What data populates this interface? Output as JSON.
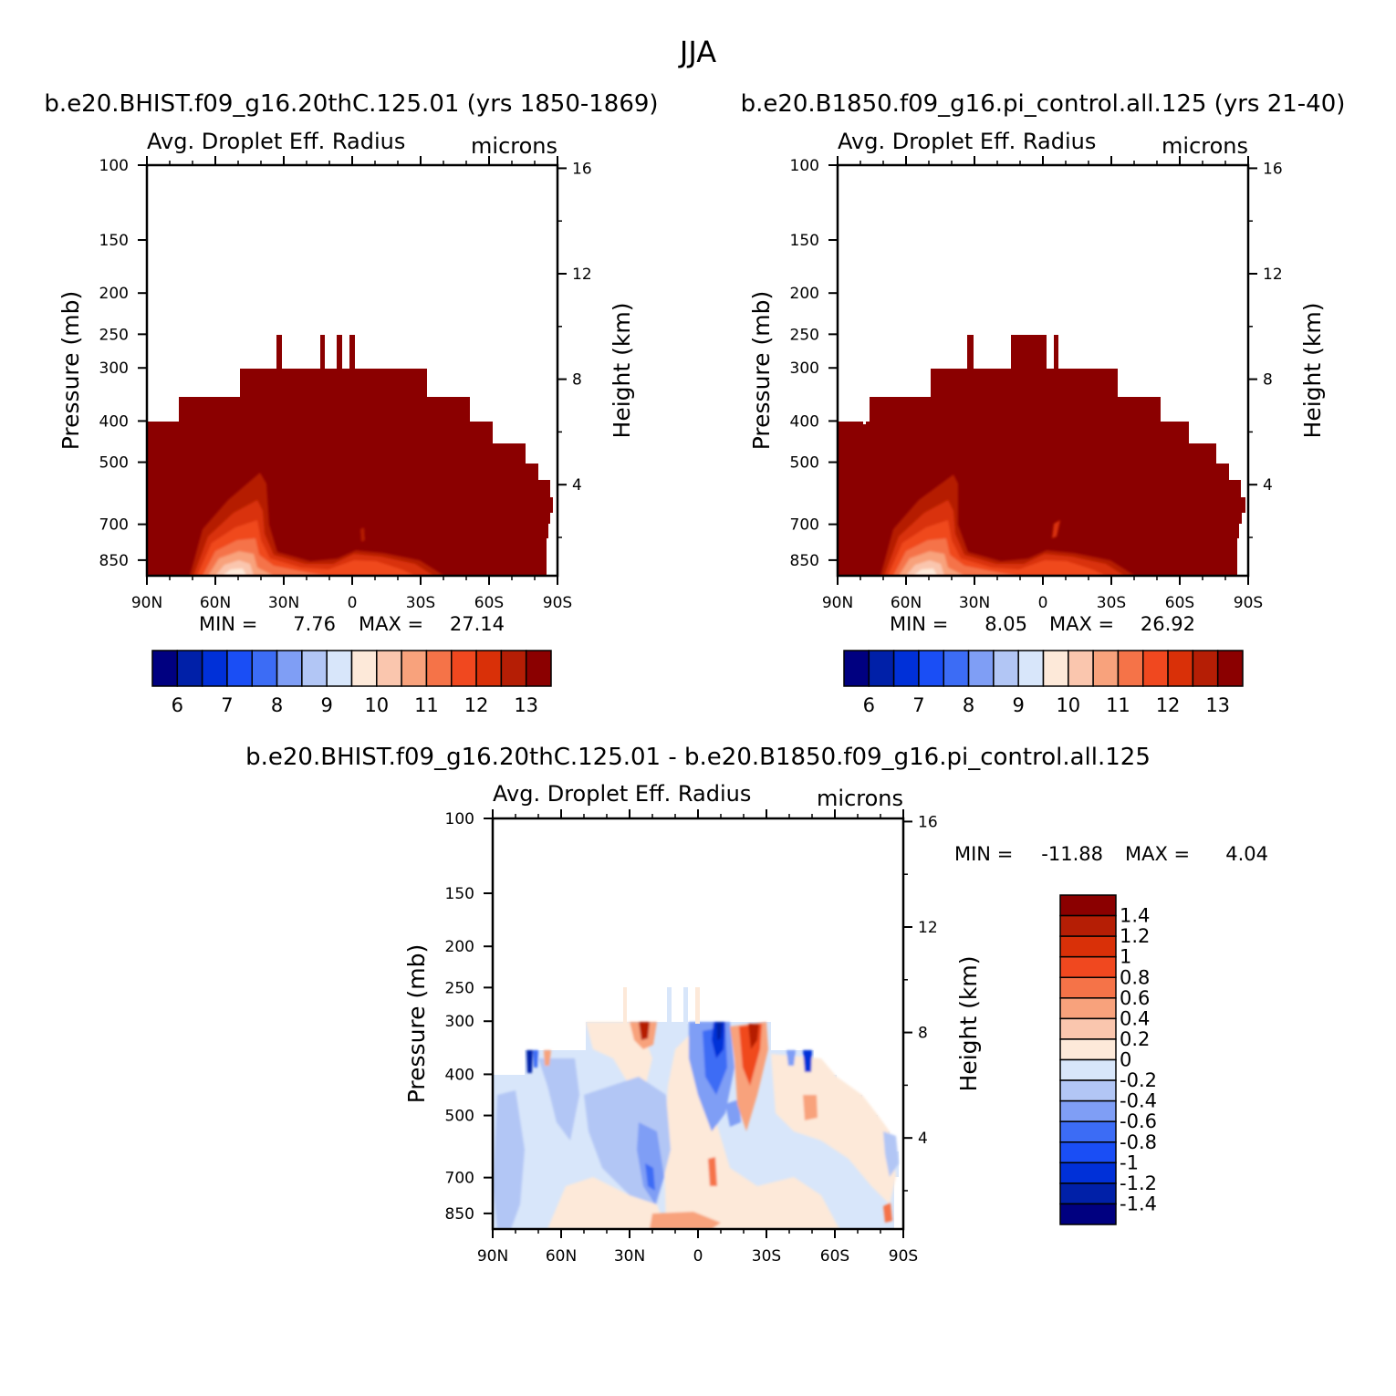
{
  "figure": {
    "title": "JJA",
    "panel1_title": "b.e20.BHIST.f09_g16.20thC.125.01 (yrs 1850-1869)",
    "panel2_title": "b.e20.B1850.f09_g16.pi_control.all.125 (yrs 21-40)",
    "panel3_title": "b.e20.BHIST.f09_g16.20thC.125.01 - b.e20.B1850.f09_g16.pi_control.all.125"
  },
  "chart_data": [
    {
      "type": "heatmap",
      "variable": "Avg. Droplet Eff. Radius",
      "units": "microns",
      "ylabel": "Pressure (mb)",
      "ylabel_right": "Height (km)",
      "x_ticks": [
        "90N",
        "60N",
        "30N",
        "0",
        "30S",
        "60S",
        "90S"
      ],
      "y_ticks": [
        100,
        150,
        200,
        250,
        300,
        400,
        500,
        700,
        850
      ],
      "height_ticks": [
        16,
        12,
        8,
        4
      ],
      "ylim": [
        100,
        925
      ],
      "y_scale": "log",
      "min_label": "MIN =",
      "min": "7.76",
      "max_label": "MAX =",
      "max": "27.14",
      "colorbar_labels": [
        "6",
        "7",
        "8",
        "9",
        "10",
        "11",
        "12",
        "13"
      ],
      "colorbar_levels": [
        5.5,
        6,
        6.5,
        7,
        7.5,
        8,
        8.5,
        9,
        9.5,
        10,
        10.5,
        11,
        11.5,
        12,
        12.5,
        13,
        13.5
      ],
      "colorbar_colors": [
        "#000080",
        "#0020a8",
        "#0030d8",
        "#1a4ef5",
        "#3c6cf5",
        "#7f9ef5",
        "#b2c6f5",
        "#d8e6fa",
        "#fde9d9",
        "#fac6ae",
        "#f8a27c",
        "#f57348",
        "#f0481f",
        "#d93008",
        "#b51e05",
        "#8b0000"
      ],
      "grid": false
    },
    {
      "type": "heatmap",
      "variable": "Avg. Droplet Eff. Radius",
      "units": "microns",
      "ylabel": "Pressure (mb)",
      "ylabel_right": "Height (km)",
      "x_ticks": [
        "90N",
        "60N",
        "30N",
        "0",
        "30S",
        "60S",
        "90S"
      ],
      "y_ticks": [
        100,
        150,
        200,
        250,
        300,
        400,
        500,
        700,
        850
      ],
      "height_ticks": [
        16,
        12,
        8,
        4
      ],
      "ylim": [
        100,
        925
      ],
      "y_scale": "log",
      "min_label": "MIN =",
      "min": "8.05",
      "max_label": "MAX =",
      "max": "26.92",
      "colorbar_labels": [
        "6",
        "7",
        "8",
        "9",
        "10",
        "11",
        "12",
        "13"
      ],
      "colorbar_levels": [
        5.5,
        6,
        6.5,
        7,
        7.5,
        8,
        8.5,
        9,
        9.5,
        10,
        10.5,
        11,
        11.5,
        12,
        12.5,
        13,
        13.5
      ],
      "colorbar_colors": [
        "#000080",
        "#0020a8",
        "#0030d8",
        "#1a4ef5",
        "#3c6cf5",
        "#7f9ef5",
        "#b2c6f5",
        "#d8e6fa",
        "#fde9d9",
        "#fac6ae",
        "#f8a27c",
        "#f57348",
        "#f0481f",
        "#d93008",
        "#b51e05",
        "#8b0000"
      ],
      "grid": false
    },
    {
      "type": "heatmap",
      "variable": "Avg. Droplet Eff. Radius",
      "units": "microns",
      "ylabel": "Pressure (mb)",
      "ylabel_right": "Height (km)",
      "x_ticks": [
        "90N",
        "60N",
        "30N",
        "0",
        "30S",
        "60S",
        "90S"
      ],
      "y_ticks": [
        100,
        150,
        200,
        250,
        300,
        400,
        500,
        700,
        850
      ],
      "height_ticks": [
        16,
        12,
        8,
        4
      ],
      "ylim": [
        100,
        925
      ],
      "y_scale": "log",
      "min_label": "MIN =",
      "min": "-11.88",
      "max_label": "MAX =",
      "max": "4.04",
      "colorbar_labels": [
        "1.4",
        "1.2",
        "1",
        "0.8",
        "0.6",
        "0.4",
        "0.2",
        "0",
        "-0.2",
        "-0.4",
        "-0.6",
        "-0.8",
        "-1",
        "-1.2",
        "-1.4"
      ],
      "colorbar_colors": [
        "#8b0000",
        "#b51e05",
        "#d93008",
        "#f0481f",
        "#f57348",
        "#f8a27c",
        "#fac6ae",
        "#fde9d9",
        "#d8e6fa",
        "#b2c6f5",
        "#7f9ef5",
        "#3c6cf5",
        "#1a4ef5",
        "#0030d8",
        "#0020a8",
        "#000080"
      ],
      "grid": false
    }
  ]
}
